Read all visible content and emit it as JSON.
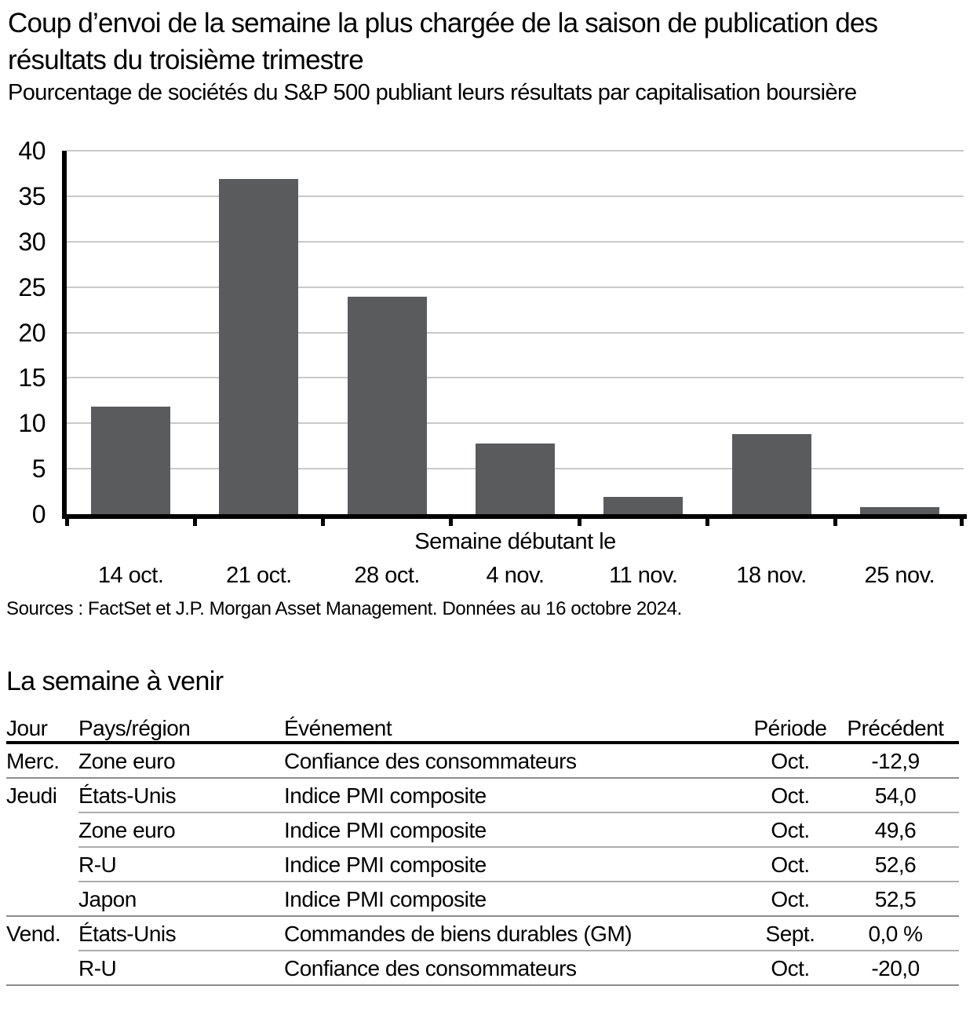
{
  "header": {
    "title": "Coup d’envoi de la semaine la plus chargée de la saison de publication des résultats du troisième trimestre",
    "subtitle": "Pourcentage de sociétés du S&P 500 publiant leurs résultats par capitalisation boursière"
  },
  "chart_data": {
    "type": "bar",
    "categories": [
      "14 oct.",
      "21 oct.",
      "28 oct.",
      "4 nov.",
      "11 nov.",
      "18 nov.",
      "25 nov."
    ],
    "values": [
      11.8,
      36.9,
      23.9,
      7.8,
      1.9,
      8.8,
      0.8
    ],
    "title": "",
    "xlabel": "Semaine débutant le",
    "ylabel": "",
    "ylim": [
      0,
      40
    ],
    "ytick_step": 5,
    "grid": true,
    "legend": "none",
    "bar_color": "#595b5d",
    "gridline_color": "#c9c9ca",
    "axis_color": "#000000"
  },
  "source": "Sources : FactSet et J.P. Morgan Asset Management. Données au 16 octobre 2024.",
  "table": {
    "title": "La semaine à venir",
    "columns": [
      "Jour",
      "Pays/région",
      "Événement",
      "Période",
      "Précédent"
    ],
    "rows": [
      {
        "day": "Merc.",
        "region": "Zone euro",
        "event": "Confiance des consommateurs",
        "period": "Oct.",
        "previous": "-12,9"
      },
      {
        "day": "Jeudi",
        "region": "États-Unis",
        "event": "Indice PMI composite",
        "period": "Oct.",
        "previous": "54,0"
      },
      {
        "day": "",
        "region": "Zone euro",
        "event": "Indice PMI composite",
        "period": "Oct.",
        "previous": "49,6"
      },
      {
        "day": "",
        "region": "R-U",
        "event": "Indice PMI composite",
        "period": "Oct.",
        "previous": "52,6"
      },
      {
        "day": "",
        "region": "Japon",
        "event": "Indice PMI composite",
        "period": "Oct.",
        "previous": "52,5"
      },
      {
        "day": "Vend.",
        "region": "États-Unis",
        "event": "Commandes de biens durables (GM)",
        "period": "Sept.",
        "previous": "0,0 %"
      },
      {
        "day": "",
        "region": "R-U",
        "event": "Confiance des consommateurs",
        "period": "Oct.",
        "previous": "-20,0"
      }
    ]
  }
}
